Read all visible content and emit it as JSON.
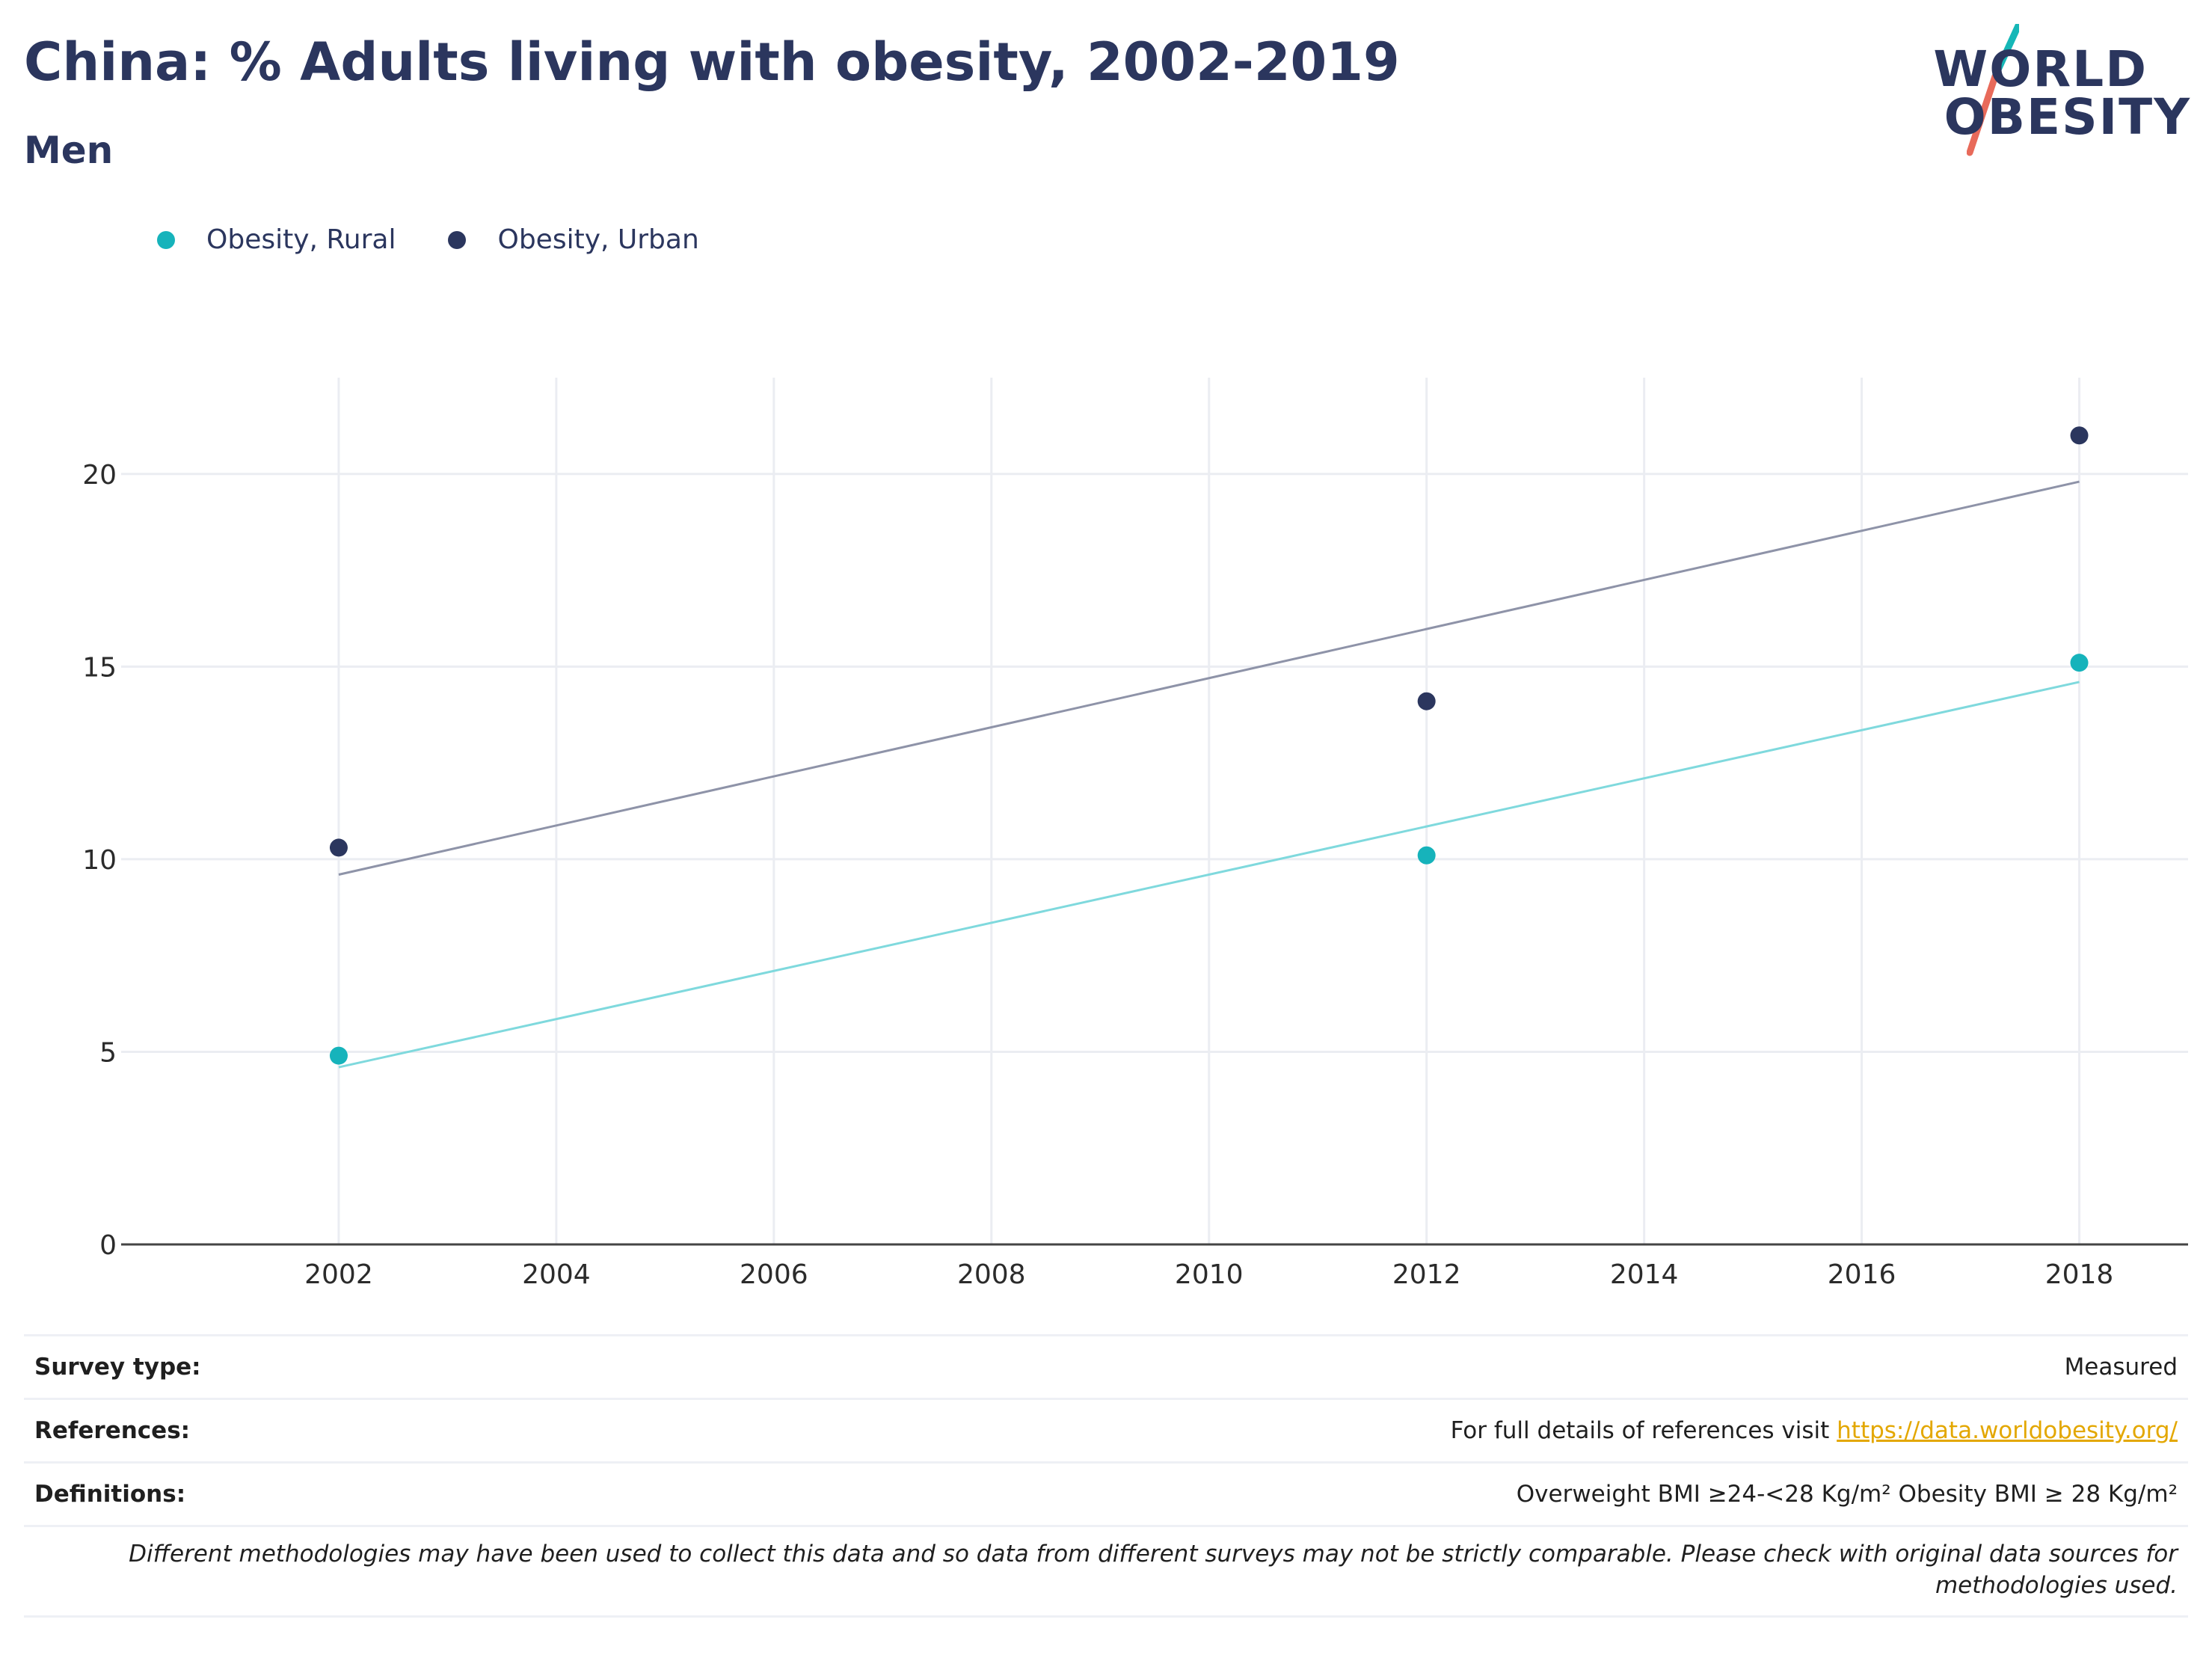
{
  "header": {
    "title": "China: % Adults living with obesity, 2002-2019",
    "subtitle": "Men"
  },
  "logo": {
    "line1": "WORLD",
    "line2": "OBESITY",
    "colors": {
      "text": "#2b365e",
      "slash_top": "#16b7b7",
      "slash_bottom": "#e86a5a"
    }
  },
  "legend": {
    "items": [
      {
        "label": "Obesity, Rural",
        "color": "#16b3bb"
      },
      {
        "label": "Obesity, Urban",
        "color": "#2b365e"
      }
    ]
  },
  "chart_data": {
    "type": "scatter",
    "title": "China: % Adults living with obesity, 2002-2019",
    "subtitle": "Men",
    "xlabel": "",
    "ylabel": "",
    "xlim": [
      2000,
      2019
    ],
    "ylim": [
      0,
      22.5
    ],
    "x_ticks": [
      2002,
      2004,
      2006,
      2008,
      2010,
      2012,
      2014,
      2016,
      2018
    ],
    "y_ticks": [
      0,
      5,
      10,
      15,
      20
    ],
    "grid": true,
    "legend_position": "top-left",
    "series": [
      {
        "name": "Obesity, Rural",
        "color": "#16b3bb",
        "trend_color": "#7fd9dd",
        "x": [
          2002,
          2012,
          2018
        ],
        "y": [
          4.9,
          10.1,
          15.1
        ],
        "trendline": {
          "x": [
            2002,
            2018
          ],
          "y": [
            4.6,
            14.6
          ]
        }
      },
      {
        "name": "Obesity, Urban",
        "color": "#2b365e",
        "trend_color": "#8e93a8",
        "x": [
          2002,
          2012,
          2018
        ],
        "y": [
          10.3,
          14.1,
          21.0
        ],
        "trendline": {
          "x": [
            2002,
            2018
          ],
          "y": [
            9.6,
            19.8
          ]
        }
      }
    ]
  },
  "footer": {
    "survey_type_label": "Survey type:",
    "survey_type_value": "Measured",
    "references_label": "References:",
    "references_text": "For full details of references visit ",
    "references_link": "https://data.worldobesity.org/",
    "definitions_label": "Definitions:",
    "definitions_value": "Overweight BMI ≥24-<28 Kg/m² Obesity BMI ≥ 28 Kg/m²",
    "note": "Different methodologies may have been used to collect this data and so data from different surveys may not be strictly comparable. Please check with original data sources for methodologies used."
  }
}
